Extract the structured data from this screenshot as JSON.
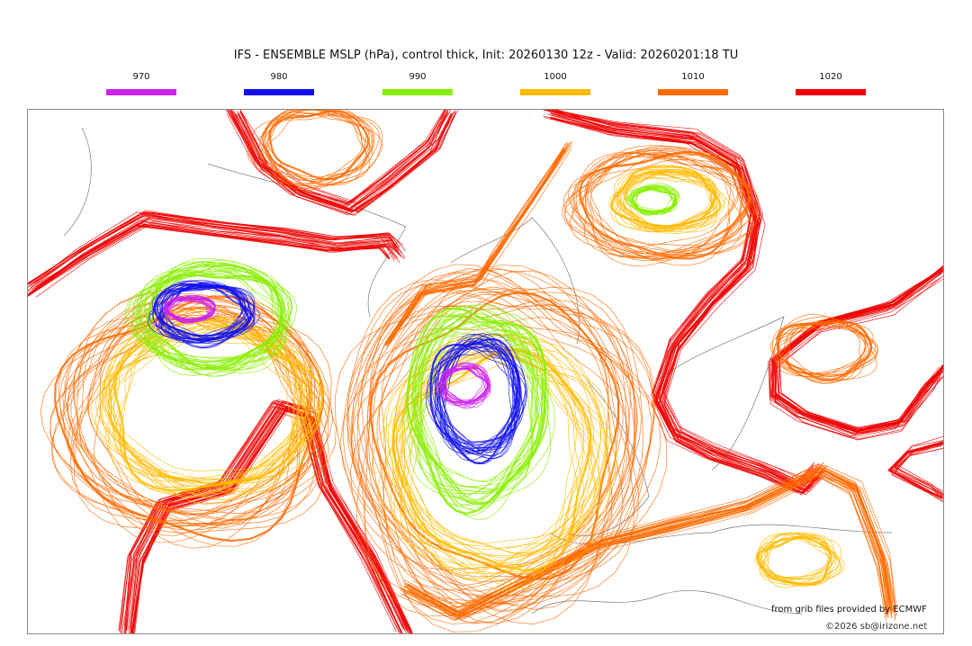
{
  "title": "IFS - ENSEMBLE MSLP (hPa), control thick, Init: 20260130 12z - Valid: 20260201:18 TU",
  "legend": [
    {
      "label": "970",
      "color": "#cc22ee"
    },
    {
      "label": "980",
      "color": "#1010ee"
    },
    {
      "label": "990",
      "color": "#88ee00"
    },
    {
      "label": "1000",
      "color": "#ffbb00"
    },
    {
      "label": "1010",
      "color": "#ff6a00"
    },
    {
      "label": "1020",
      "color": "#ee0000"
    }
  ],
  "credits": {
    "source": "from grib files provided by ECMWF",
    "copyright": "©2026 sb@irizone.net"
  }
}
